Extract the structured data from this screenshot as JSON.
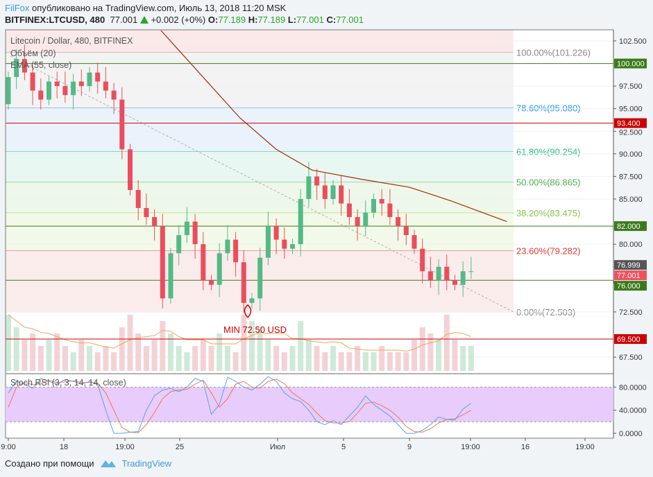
{
  "header": {
    "author": "FilFox",
    "published": "опубликовано на TradingView.com, Июль 13, 2018 11:20 MSK",
    "symbol": "BITFINEX:LTCUSD, 480",
    "last": "77.001",
    "change": "+0.002 (+0%)",
    "o_label": "O:",
    "o": "77.189",
    "h_label": "H:",
    "h": "77.189",
    "l_label": "L:",
    "l": "77.001",
    "c_label": "C:",
    "c": "77.001"
  },
  "legend": {
    "title": "Litecoin / Dollar, 480, BITFINEX",
    "volume": "Объём (20)",
    "ema": "EMA (55, close)",
    "stoch": "Stoch RSI (3, 3, 14, 14, close)"
  },
  "footer": {
    "created_with": "Создано при помощи",
    "brand": "TradingView"
  },
  "annotation": "MIN 72.50 USD",
  "colors": {
    "up": "#53b987",
    "down": "#eb4d5c",
    "ema": "#a52a0a",
    "k": "#5aa0f0",
    "d": "#f0774a",
    "stoch_band": "#e8ccfc"
  },
  "chart_data": {
    "type": "candlestick",
    "ylim": [
      66,
      104
    ],
    "price_ticks": [
      "102.500",
      "97.500",
      "95.000",
      "92.500",
      "90.000",
      "87.500",
      "85.000",
      "80.000",
      "72.500",
      "67.500"
    ],
    "time_ticks": [
      "9:00",
      "18",
      "19:00",
      "25",
      "Июл",
      "5",
      "9",
      "19:00",
      "16",
      "19:00"
    ],
    "closes": [
      98.5,
      100.5,
      99,
      97,
      96,
      98,
      97.5,
      96.5,
      98,
      97.5,
      99,
      98,
      97,
      96,
      90.5,
      86,
      84,
      83,
      82,
      74,
      79,
      81,
      82.5,
      80,
      76,
      75.5,
      79,
      80.5,
      78,
      73.5,
      74,
      78.5,
      82,
      80.5,
      79.5,
      80,
      85,
      87.5,
      86.5,
      85,
      86.5,
      84.5,
      83,
      82,
      83.5,
      85,
      84.5,
      83,
      82,
      81,
      79.5,
      77,
      76,
      77.5,
      76,
      75.5,
      77,
      77.001
    ],
    "open_first": 95.5,
    "volumes": [
      0.9,
      0.7,
      0.5,
      0.6,
      0.4,
      0.5,
      0.6,
      0.4,
      0.3,
      0.5,
      0.4,
      0.3,
      0.4,
      0.3,
      0.7,
      0.9,
      0.6,
      0.4,
      0.5,
      0.8,
      0.6,
      0.4,
      0.3,
      0.4,
      0.5,
      0.4,
      0.6,
      0.4,
      0.3,
      0.9,
      0.8,
      0.7,
      0.5,
      0.4,
      0.3,
      0.4,
      0.8,
      0.5,
      0.4,
      0.3,
      0.4,
      0.3,
      0.3,
      0.4,
      0.3,
      0.3,
      0.4,
      0.3,
      0.3,
      0.3,
      0.5,
      0.7,
      0.6,
      0.5,
      0.9,
      0.5,
      0.4,
      0.4
    ],
    "ema": [
      [
        18.8,
        103.65
      ],
      [
        28.5,
        94
      ],
      [
        33,
        90.5
      ],
      [
        37.4,
        88.2
      ],
      [
        43.4,
        87.2
      ],
      [
        49.4,
        86.3
      ],
      [
        54.5,
        84.8
      ],
      [
        61.4,
        82.5
      ]
    ],
    "fib": [
      {
        "label": "100.00%(101.226)",
        "value": 101.226,
        "color": "#888888",
        "fill": "#f3f3f3"
      },
      {
        "label": "78.60%(95.080)",
        "value": 95.08,
        "color": "#2196f3",
        "fill": "#eaf3fb"
      },
      {
        "label": "61.80%(90.254)",
        "value": 90.254,
        "color": "#26c281",
        "fill": "#e8f7f1"
      },
      {
        "label": "50.00%(86.865)",
        "value": 86.865,
        "color": "#4caf50",
        "fill": "#eef8ea"
      },
      {
        "label": "38.20%(83.475)",
        "value": 83.475,
        "color": "#8bc34a",
        "fill": "#f3f9e8"
      },
      {
        "label": "23.60%(79.282)",
        "value": 79.282,
        "color": "#e53935",
        "fill": "#fbecec"
      },
      {
        "label": "0.00%(72.503)",
        "value": 72.503,
        "color": "#888888",
        "fill": null
      }
    ],
    "levels": [
      {
        "value": 100.0,
        "label": "100.000",
        "color": "#3b7a1a"
      },
      {
        "value": 93.4,
        "label": "93.400",
        "color": "#cc0000"
      },
      {
        "value": 82.0,
        "label": "82.000",
        "color": "#3b7a1a"
      },
      {
        "value": 76.0,
        "label": "76.000",
        "color": "#3b7a1a"
      },
      {
        "value": 69.5,
        "label": "69.500",
        "color": "#cc0000"
      }
    ],
    "price_labels": [
      {
        "value": 77.7,
        "label": "76.999",
        "color": "#555555"
      },
      {
        "value": 76.6,
        "label": "77.001",
        "color": "#ef5060"
      }
    ],
    "stoch": {
      "ticks": [
        "80.0000",
        "40.0000",
        "0.0000"
      ],
      "upper": 80,
      "lower": 20,
      "k": [
        70,
        90,
        85,
        78,
        95,
        90,
        85,
        93,
        90,
        85,
        90,
        85,
        40,
        0,
        0,
        2,
        3,
        40,
        65,
        75,
        78,
        72,
        80,
        95,
        90,
        33,
        50,
        97,
        90,
        80,
        75,
        85,
        98,
        90,
        70,
        60,
        55,
        40,
        20,
        15,
        22,
        15,
        30,
        45,
        65,
        50,
        40,
        30,
        15,
        0,
        0,
        5,
        15,
        28,
        24,
        23,
        42,
        52
      ],
      "d": [
        45,
        80,
        88,
        84,
        86,
        92,
        88,
        89,
        91,
        88,
        88,
        87,
        70,
        40,
        10,
        2,
        1,
        15,
        36,
        60,
        72,
        75,
        76,
        85,
        92,
        70,
        45,
        60,
        85,
        90,
        80,
        78,
        90,
        94,
        86,
        70,
        60,
        50,
        35,
        22,
        18,
        18,
        20,
        35,
        52,
        54,
        48,
        40,
        28,
        12,
        3,
        2,
        8,
        18,
        24,
        25,
        32,
        40
      ]
    }
  }
}
